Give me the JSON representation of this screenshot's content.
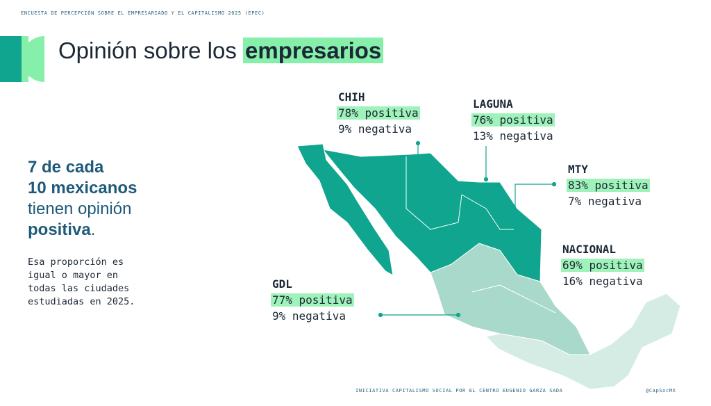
{
  "header": "ENCUESTA DE PERCEPCIÓN SOBRE EL EMPRESARIADO Y EL CAPITALISMO 2025 (EPEC)",
  "title": {
    "text": "Opinión sobre los",
    "highlight": "empresarios"
  },
  "headline": [
    "7 de cada",
    "10 mexicanos",
    "tienen opinión",
    "positiva",
    "."
  ],
  "paragraph": [
    "Esa proporción es",
    "igual o mayor en",
    "todas las ciudades",
    "estudiadas en 2025."
  ],
  "cities": [
    {
      "name": "CHIH",
      "positive": "78% positiva",
      "negative": "9% negativa"
    },
    {
      "name": "LAGUNA",
      "positive": "76% positiva",
      "negative": "13% negativa"
    },
    {
      "name": "MTY",
      "positive": "83% positiva",
      "negative": "7% negativa"
    },
    {
      "name": "NACIONAL",
      "positive": "69% positiva",
      "negative": "16% negativa"
    },
    {
      "name": "GDL",
      "positive": "77% positiva",
      "negative": "9% negativa"
    }
  ],
  "footer": {
    "left": "INICIATIVA CAPITALISMO SOCIAL POR EL CENTRO EUGENIO GARZA SADA",
    "right": "@CapSocMX"
  }
}
